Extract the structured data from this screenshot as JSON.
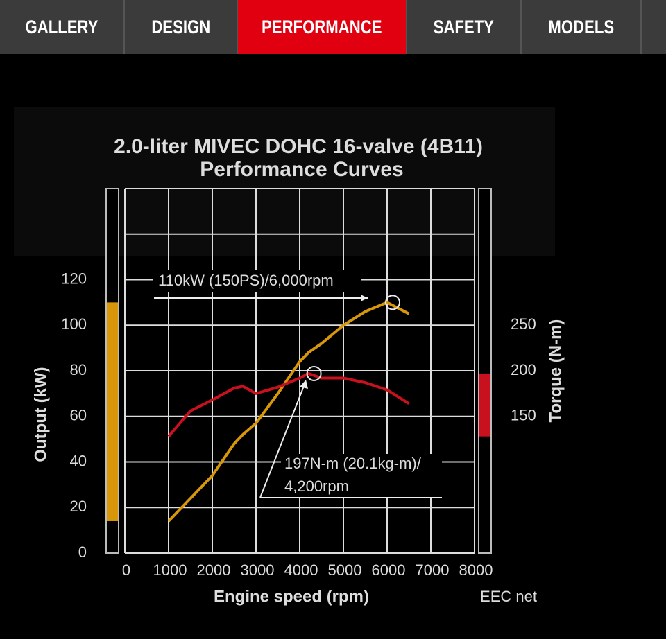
{
  "nav": {
    "tabs": [
      "GALLERY",
      "DESIGN",
      "PERFORMANCE",
      "SAFETY",
      "MODELS"
    ],
    "active": 2
  },
  "chart_data": {
    "type": "line",
    "title": "2.0-liter MIVEC DOHC 16-valve (4B11)",
    "subtitle": "Performance Curves",
    "x_label": "Engine speed (rpm)",
    "y_label": "Output (kW)",
    "y2_label": "Torque (N-m)",
    "note": "EEC net",
    "x": [
      1000,
      1500,
      2000,
      2500,
      2700,
      3000,
      3500,
      4000,
      4200,
      4500,
      5000,
      5500,
      6000,
      6500
    ],
    "series": [
      {
        "name": "Output",
        "color": "#d8960a",
        "values": [
          14,
          24,
          34,
          48,
          52,
          57,
          70,
          84,
          88,
          92,
          100,
          106,
          110,
          105
        ]
      },
      {
        "name": "Torque",
        "color": "#c8101e",
        "axis": "y2",
        "values": [
          128,
          156,
          168,
          181,
          183,
          175,
          182,
          192,
          197,
          192,
          192,
          187,
          179,
          164
        ]
      }
    ],
    "xlim": [
      0,
      8000
    ],
    "xticks": [
      0,
      1000,
      2000,
      3000,
      4000,
      5000,
      6000,
      7000,
      8000
    ],
    "ylim": [
      0,
      160
    ],
    "yticks": [
      0,
      20,
      40,
      60,
      80,
      100,
      120
    ],
    "ygrid": [
      0,
      20,
      40,
      60,
      80,
      100,
      120,
      140,
      160
    ],
    "y2lim": [
      0,
      400
    ],
    "y2ticks": [
      150,
      200,
      250
    ],
    "grid": true,
    "annotations": [
      {
        "lines": [
          "110kW (150PS)/6,000rpm"
        ]
      },
      {
        "lines": [
          "197N-m (20.1kg-m)/",
          "4,200rpm"
        ]
      }
    ]
  }
}
